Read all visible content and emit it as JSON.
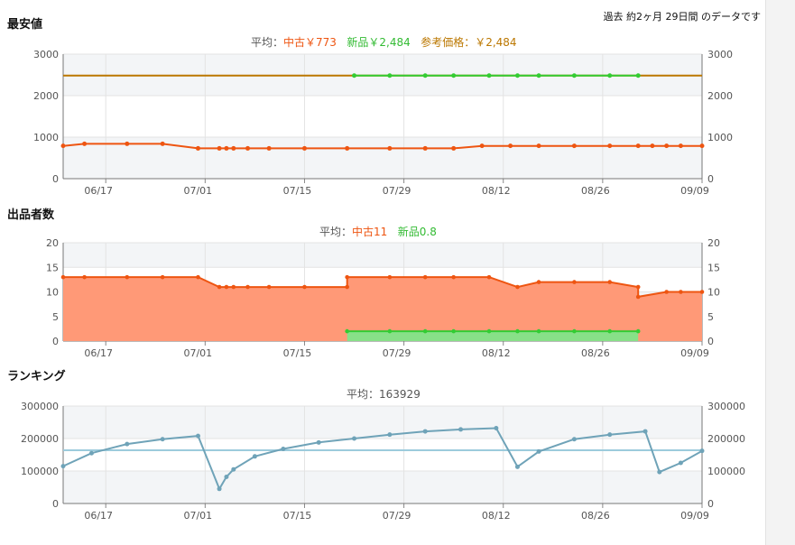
{
  "header": {
    "period_text": "過去 約2ヶ月 29日間 のデータです"
  },
  "colors": {
    "used": "#ee5511",
    "used_fill": "#ff9977",
    "new": "#33cc33",
    "new_fill": "#88e088",
    "ref": "#bb7700",
    "rank": "#6fa3b8",
    "rank_avg": "#9ccbdc",
    "grid": "#e3e3e3",
    "band": "#f3f5f7"
  },
  "x_ticks": [
    "06/17",
    "07/01",
    "07/15",
    "07/29",
    "08/12",
    "08/26",
    "09/09"
  ],
  "sections": {
    "price": {
      "title": "最安値",
      "avg_label": "平均：",
      "avg_used": "中古￥773",
      "avg_new": "新品￥2,484",
      "avg_ref": "参考価格：￥2,484"
    },
    "sellers": {
      "title": "出品者数",
      "avg_label": "平均：",
      "avg_used": "中古11",
      "avg_new": "新品0.8"
    },
    "ranking": {
      "title": "ランキング",
      "avg_label": "平均：",
      "avg_value": "163929"
    }
  },
  "chart_data": [
    {
      "type": "line",
      "title": "最安値",
      "x_axis": "date",
      "ylim": [
        0,
        3000
      ],
      "y_ticks": [
        "0",
        "1000",
        "2000",
        "3000"
      ],
      "series": [
        {
          "name": "参考価格",
          "x": [
            "06/11",
            "09/09"
          ],
          "values": [
            2484,
            2484
          ]
        },
        {
          "name": "新品",
          "x": [
            "07/22",
            "07/27",
            "08/01",
            "08/05",
            "08/10",
            "08/14",
            "08/17",
            "08/22",
            "08/27",
            "08/31"
          ],
          "values": [
            2484,
            2484,
            2484,
            2484,
            2484,
            2484,
            2484,
            2484,
            2484,
            2484
          ]
        },
        {
          "name": "中古",
          "x": [
            "06/11",
            "06/14",
            "06/20",
            "06/25",
            "06/30",
            "07/03",
            "07/04",
            "07/05",
            "07/07",
            "07/10",
            "07/15",
            "07/21",
            "07/27",
            "08/01",
            "08/05",
            "08/09",
            "08/13",
            "08/17",
            "08/22",
            "08/27",
            "08/31",
            "09/02",
            "09/04",
            "09/06",
            "09/09"
          ],
          "values": [
            790,
            840,
            840,
            840,
            730,
            730,
            730,
            730,
            730,
            730,
            730,
            730,
            730,
            730,
            730,
            790,
            790,
            790,
            790,
            790,
            790,
            790,
            790,
            790,
            790
          ]
        }
      ]
    },
    {
      "type": "area",
      "title": "出品者数",
      "x_axis": "date",
      "ylim": [
        0,
        20
      ],
      "y_ticks": [
        "0",
        "5",
        "10",
        "15",
        "20"
      ],
      "series": [
        {
          "name": "中古",
          "x": [
            "06/11",
            "06/14",
            "06/20",
            "06/25",
            "06/30",
            "07/03",
            "07/04",
            "07/05",
            "07/07",
            "07/10",
            "07/15",
            "07/21",
            "07/21",
            "07/27",
            "08/01",
            "08/05",
            "08/10",
            "08/14",
            "08/17",
            "08/22",
            "08/27",
            "08/31",
            "08/31",
            "09/04",
            "09/06",
            "09/09"
          ],
          "values": [
            13,
            13,
            13,
            13,
            13,
            11,
            11,
            11,
            11,
            11,
            11,
            11,
            13,
            13,
            13,
            13,
            13,
            11,
            12,
            12,
            12,
            11,
            9,
            10,
            10,
            10
          ]
        },
        {
          "name": "新品",
          "x": [
            "07/21",
            "07/27",
            "08/01",
            "08/05",
            "08/10",
            "08/14",
            "08/17",
            "08/22",
            "08/27",
            "08/31"
          ],
          "values": [
            2,
            2,
            2,
            2,
            2,
            2,
            2,
            2,
            2,
            2
          ]
        }
      ]
    },
    {
      "type": "line",
      "title": "ランキング",
      "x_axis": "date",
      "ylim": [
        0,
        300000
      ],
      "y_ticks": [
        "0",
        "100000",
        "200000",
        "300000"
      ],
      "series": [
        {
          "name": "ランキング",
          "x": [
            "06/11",
            "06/15",
            "06/20",
            "06/25",
            "06/30",
            "07/03",
            "07/04",
            "07/05",
            "07/08",
            "07/12",
            "07/17",
            "07/22",
            "07/27",
            "08/01",
            "08/06",
            "08/11",
            "08/14",
            "08/17",
            "08/22",
            "08/27",
            "09/01",
            "09/03",
            "09/06",
            "09/09"
          ],
          "values": [
            115000,
            155000,
            183000,
            198000,
            208000,
            45000,
            82000,
            105000,
            145000,
            168000,
            188000,
            200000,
            212000,
            222000,
            228000,
            232000,
            113000,
            160000,
            198000,
            212000,
            222000,
            97000,
            125000,
            162000
          ]
        },
        {
          "name": "平均",
          "x": [
            "06/11",
            "09/09"
          ],
          "values": [
            163929,
            163929
          ]
        }
      ]
    }
  ]
}
